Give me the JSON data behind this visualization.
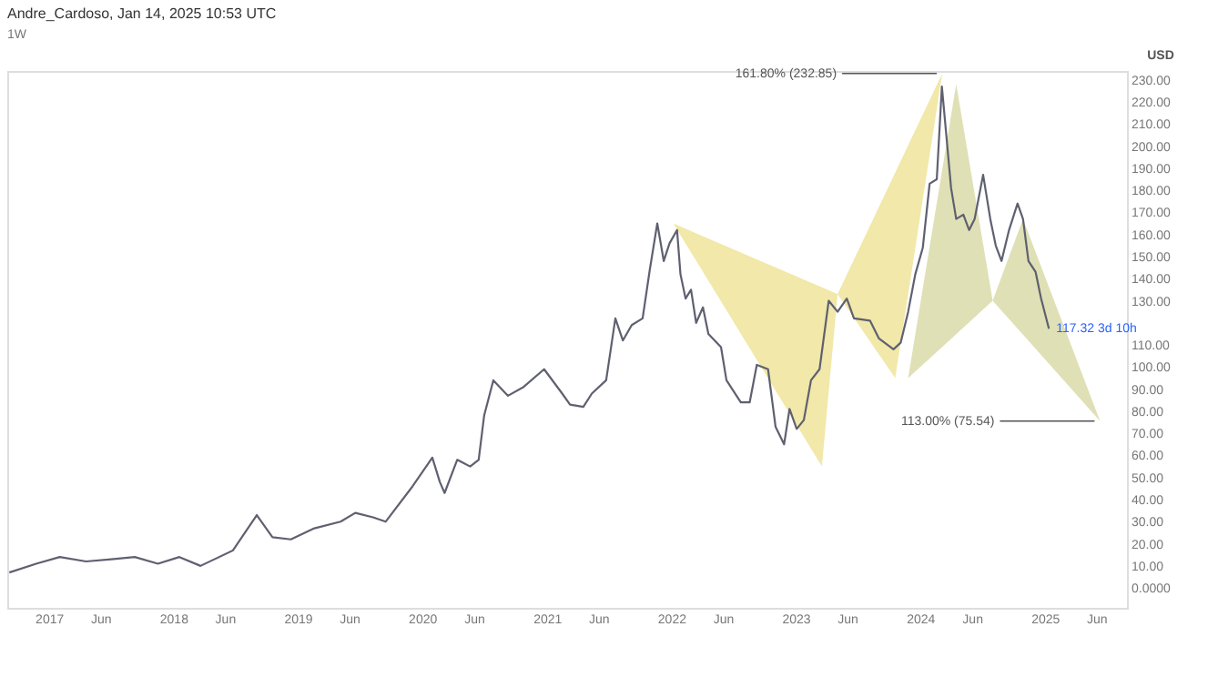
{
  "chart_data": {
    "type": "line",
    "title": "Andre_Cardoso, Jan 14, 2025 10:53 UTC",
    "subtitle": "1W",
    "ylabel": "USD",
    "xlim": [
      "2016-09-01",
      "2025-08-30"
    ],
    "ylim": [
      -9,
      234
    ],
    "xticks": [
      {
        "value": "2017-01-01",
        "label": "2017"
      },
      {
        "value": "2017-06-01",
        "label": "Jun"
      },
      {
        "value": "2018-01-01",
        "label": "2018"
      },
      {
        "value": "2018-06-01",
        "label": "Jun"
      },
      {
        "value": "2019-01-01",
        "label": "2019"
      },
      {
        "value": "2019-06-01",
        "label": "Jun"
      },
      {
        "value": "2020-01-01",
        "label": "2020"
      },
      {
        "value": "2020-06-01",
        "label": "Jun"
      },
      {
        "value": "2021-01-01",
        "label": "2021"
      },
      {
        "value": "2021-06-01",
        "label": "Jun"
      },
      {
        "value": "2022-01-01",
        "label": "2022"
      },
      {
        "value": "2022-06-01",
        "label": "Jun"
      },
      {
        "value": "2023-01-01",
        "label": "2023"
      },
      {
        "value": "2023-06-01",
        "label": "Jun"
      },
      {
        "value": "2024-01-01",
        "label": "2024"
      },
      {
        "value": "2024-06-01",
        "label": "Jun"
      },
      {
        "value": "2025-01-01",
        "label": "2025"
      },
      {
        "value": "2025-06-01",
        "label": "Jun"
      }
    ],
    "yticks": [
      {
        "value": 0,
        "label": "0.0000"
      },
      {
        "value": 10,
        "label": "10.00"
      },
      {
        "value": 20,
        "label": "20.00"
      },
      {
        "value": 30,
        "label": "30.00"
      },
      {
        "value": 40,
        "label": "40.00"
      },
      {
        "value": 50,
        "label": "50.00"
      },
      {
        "value": 60,
        "label": "60.00"
      },
      {
        "value": 70,
        "label": "70.00"
      },
      {
        "value": 80,
        "label": "80.00"
      },
      {
        "value": 90,
        "label": "90.00"
      },
      {
        "value": 100,
        "label": "100.00"
      },
      {
        "value": 110,
        "label": "110.00"
      },
      {
        "value": 130,
        "label": "130.00"
      },
      {
        "value": 140,
        "label": "140.00"
      },
      {
        "value": 150,
        "label": "150.00"
      },
      {
        "value": 160,
        "label": "160.00"
      },
      {
        "value": 170,
        "label": "170.00"
      },
      {
        "value": 180,
        "label": "180.00"
      },
      {
        "value": 190,
        "label": "190.00"
      },
      {
        "value": 200,
        "label": "200.00"
      },
      {
        "value": 210,
        "label": "210.00"
      },
      {
        "value": 220,
        "label": "220.00"
      },
      {
        "value": 230,
        "label": "230.00"
      }
    ],
    "series": [
      {
        "type": "area",
        "color": "#efe49a",
        "x": [
          "2022-01-07",
          "2023-03-19",
          "2023-05-04"
        ],
        "values": [
          165,
          55,
          133
        ]
      },
      {
        "type": "area",
        "color": "#efe49a",
        "x": [
          "2023-05-04",
          "2023-10-20",
          "2024-03-06"
        ],
        "values": [
          133,
          95,
          232.85
        ]
      },
      {
        "type": "area",
        "color": "#d9dba8",
        "x": [
          "2023-11-27",
          "2024-04-16",
          "2024-08-01"
        ],
        "values": [
          95,
          228,
          130
        ]
      },
      {
        "type": "area",
        "color": "#d9dba8",
        "x": [
          "2024-08-01",
          "2024-10-29",
          "2025-06-12"
        ],
        "values": [
          130,
          167,
          75.54
        ]
      },
      {
        "color": "#5f6070",
        "x": [
          "2016-09-07",
          "2016-11-25",
          "2017-02-02",
          "2017-04-20",
          "2017-07-03",
          "2017-09-10",
          "2017-11-17",
          "2018-01-19",
          "2018-03-22",
          "2018-06-25",
          "2018-09-03",
          "2018-10-19",
          "2018-12-12",
          "2019-02-19",
          "2019-05-07",
          "2019-06-19",
          "2019-08-10",
          "2019-09-16",
          "2019-12-04",
          "2020-01-31",
          "2020-02-22",
          "2020-03-07",
          "2020-04-13",
          "2020-05-21",
          "2020-06-15",
          "2020-07-01",
          "2020-07-28",
          "2020-09-09",
          "2020-10-25",
          "2020-12-24",
          "2021-02-15",
          "2021-03-10",
          "2021-04-18",
          "2021-05-13",
          "2021-06-24",
          "2021-07-21",
          "2021-08-12",
          "2021-09-07",
          "2021-10-09",
          "2021-10-30",
          "2021-11-21",
          "2021-12-10",
          "2021-12-27",
          "2022-01-18",
          "2022-01-28",
          "2022-02-12",
          "2022-02-28",
          "2022-03-15",
          "2022-04-04",
          "2022-04-20",
          "2022-05-27",
          "2022-06-12",
          "2022-07-24",
          "2022-08-19",
          "2022-09-09",
          "2022-10-12",
          "2022-11-03",
          "2022-11-28",
          "2022-12-14",
          "2023-01-04",
          "2023-01-25",
          "2023-02-15",
          "2023-03-12",
          "2023-04-08",
          "2023-05-04",
          "2023-05-31",
          "2023-06-21",
          "2023-08-07",
          "2023-09-02",
          "2023-10-15",
          "2023-11-05",
          "2023-11-27",
          "2023-12-18",
          "2024-01-09",
          "2024-01-29",
          "2024-02-19",
          "2024-03-05",
          "2024-04-01",
          "2024-04-16",
          "2024-05-07",
          "2024-05-24",
          "2024-06-09",
          "2024-07-04",
          "2024-07-25",
          "2024-08-10",
          "2024-08-27",
          "2024-09-18",
          "2024-10-13",
          "2024-10-29",
          "2024-11-14",
          "2024-12-05",
          "2024-12-21",
          "2025-01-13"
        ],
        "values": [
          7,
          11,
          14,
          12,
          13,
          14,
          11,
          14,
          10,
          17,
          33,
          23,
          22,
          27,
          30,
          34,
          32,
          30,
          46,
          59,
          48,
          43,
          58,
          55,
          58,
          78,
          94,
          87,
          91,
          99,
          88,
          83,
          82,
          88,
          94,
          122,
          112,
          119,
          122,
          144,
          165,
          148,
          156,
          162,
          142,
          131,
          135,
          120,
          127,
          115,
          109,
          94,
          84,
          84,
          101,
          99,
          73,
          65,
          81,
          72,
          76,
          94,
          99,
          130,
          125,
          131,
          122,
          121,
          113,
          108,
          111,
          125,
          142,
          154,
          183,
          185,
          227,
          181,
          167,
          169,
          162,
          167,
          187,
          167,
          155,
          148,
          162,
          174,
          167,
          148,
          143,
          131,
          117.32
        ]
      }
    ],
    "annotations": [
      {
        "text": "161.80% (232.85)",
        "x": "2024-03-06",
        "y": 232.85
      },
      {
        "text": "113.00% (75.54)",
        "x": "2025-06-12",
        "y": 75.54
      },
      {
        "text": "117.32 3d 10h",
        "x": "2025-01-13",
        "y": 117.32
      }
    ],
    "grid": false,
    "line_style": "solid"
  }
}
